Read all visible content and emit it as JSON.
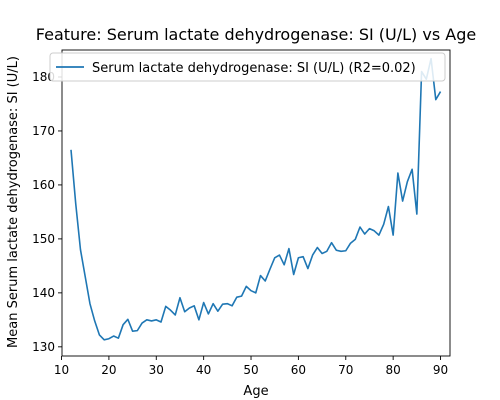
{
  "chart_data": {
    "type": "line",
    "title": "Feature: Serum lactate dehydrogenase: SI (U/L) vs Age",
    "xlabel": "Age",
    "ylabel": "Mean Serum lactate dehydrogenase: SI (U/L)",
    "xlim": [
      10.1,
      92.0
    ],
    "ylim": [
      128.3,
      185.0
    ],
    "xticks": [
      10,
      20,
      30,
      40,
      50,
      60,
      70,
      80,
      90
    ],
    "yticks": [
      130,
      140,
      150,
      160,
      170,
      180
    ],
    "grid": false,
    "legend_position": "top-right",
    "series": [
      {
        "name": "Serum lactate dehydrogenase: SI (U/L) (R2=0.02)",
        "color": "#1f77b4",
        "x": [
          12,
          13,
          14,
          15,
          16,
          17,
          18,
          19,
          20,
          21,
          22,
          23,
          24,
          25,
          26,
          27,
          28,
          29,
          30,
          31,
          32,
          33,
          34,
          35,
          36,
          37,
          38,
          39,
          40,
          41,
          42,
          43,
          44,
          45,
          46,
          47,
          48,
          49,
          50,
          51,
          52,
          53,
          54,
          55,
          56,
          57,
          58,
          59,
          60,
          61,
          62,
          63,
          64,
          65,
          66,
          67,
          68,
          69,
          70,
          71,
          72,
          73,
          74,
          75,
          76,
          77,
          78,
          79,
          80,
          81,
          82,
          83,
          84,
          85,
          86,
          87,
          88,
          89,
          90
        ],
        "y": [
          166.5,
          156.5,
          148.0,
          143.0,
          138.0,
          134.8,
          132.2,
          131.3,
          131.5,
          132.0,
          131.6,
          134.1,
          135.1,
          132.9,
          133.0,
          134.4,
          135.0,
          134.8,
          135.0,
          134.6,
          137.5,
          136.8,
          135.9,
          139.1,
          136.5,
          137.2,
          137.6,
          135.0,
          138.2,
          136.1,
          138.0,
          136.6,
          137.9,
          138.0,
          137.6,
          139.2,
          139.4,
          141.2,
          140.4,
          140.0,
          143.2,
          142.2,
          144.4,
          146.5,
          147.0,
          145.2,
          148.2,
          143.4,
          146.5,
          146.7,
          144.5,
          147.0,
          148.4,
          147.3,
          147.7,
          149.3,
          147.9,
          147.7,
          147.8,
          149.2,
          149.9,
          152.2,
          150.9,
          151.9,
          151.5,
          150.7,
          152.7,
          156.0,
          150.7,
          162.2,
          157.0,
          160.6,
          162.9,
          154.6,
          181.0,
          179.6,
          183.4,
          175.8,
          177.3
        ]
      }
    ]
  }
}
